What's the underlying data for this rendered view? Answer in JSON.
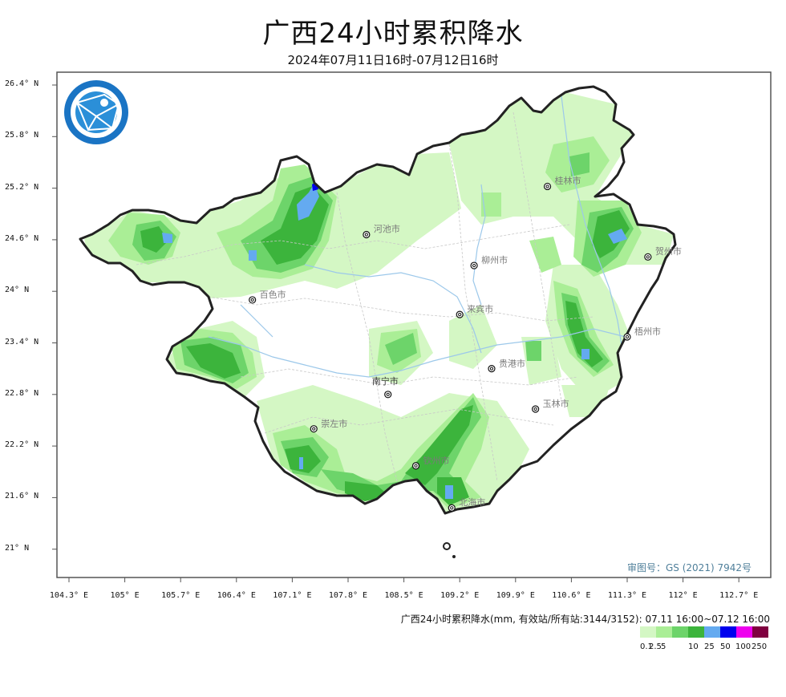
{
  "title": "广西24小时累积降水",
  "subtitle": "2024年07月11日16时-07月12日16时",
  "axes": {
    "y_ticks": [
      "26.4° N",
      "25.8° N",
      "25.2° N",
      "24.6° N",
      "24° N",
      "23.4° N",
      "22.8° N",
      "22.2° N",
      "21.6° N",
      "21° N"
    ],
    "x_ticks": [
      "104.3° E",
      "105° E",
      "105.7° E",
      "106.4° E",
      "107.1° E",
      "107.8° E",
      "108.5° E",
      "109.2° E",
      "109.9° E",
      "110.6° E",
      "111.3° E",
      "112° E",
      "112.7° E"
    ]
  },
  "cities": [
    {
      "name": "桂林市",
      "lon": 110.3,
      "lat": 25.22
    },
    {
      "name": "河池市",
      "lon": 108.03,
      "lat": 24.66
    },
    {
      "name": "柳州市",
      "lon": 109.38,
      "lat": 24.3
    },
    {
      "name": "贺州市",
      "lon": 111.56,
      "lat": 24.4
    },
    {
      "name": "百色市",
      "lon": 106.6,
      "lat": 23.9
    },
    {
      "name": "来宾市",
      "lon": 109.2,
      "lat": 23.73
    },
    {
      "name": "梧州市",
      "lon": 111.3,
      "lat": 23.47
    },
    {
      "name": "贵港市",
      "lon": 109.6,
      "lat": 23.1
    },
    {
      "name": "南宁市",
      "lon": 108.3,
      "lat": 22.8
    },
    {
      "name": "玉林市",
      "lon": 110.15,
      "lat": 22.63
    },
    {
      "name": "崇左市",
      "lon": 107.37,
      "lat": 22.4
    },
    {
      "name": "钦州市",
      "lon": 108.65,
      "lat": 21.97
    },
    {
      "name": "北海市",
      "lon": 109.1,
      "lat": 21.48
    }
  ],
  "approval_number": "审图号：GS (2021) 7942号",
  "legend": {
    "title": "广西24小时累积降水(mm, 有效站/所有站:3144/3152): 07.11 16:00~07.12 16:00",
    "colors": [
      "#d4f7c4",
      "#aaee96",
      "#6dd46a",
      "#3cb43c",
      "#64aaf0",
      "#0000ee",
      "#ee00ee",
      "#800040"
    ],
    "labels": [
      "0.1",
      "2.5",
      "5",
      "10",
      "25",
      "50",
      "100",
      "250"
    ]
  },
  "map_colors": {
    "border": "#222222",
    "rivers": "#9cc8ea",
    "county_lines": "#c8c8c8"
  }
}
